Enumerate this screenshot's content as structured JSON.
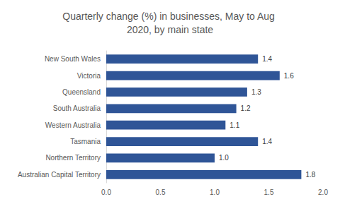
{
  "chart_data": {
    "type": "bar",
    "title": "Quarterly change (%) in businesses, May to Aug 2020, by main state",
    "orientation": "horizontal",
    "categories": [
      "New South Wales",
      "Victoria",
      "Queensland",
      "South Australia",
      "Western Australia",
      "Tasmania",
      "Northern Territory",
      "Australian Capital Territory"
    ],
    "values": [
      1.4,
      1.6,
      1.3,
      1.2,
      1.1,
      1.4,
      1.0,
      1.8
    ],
    "value_labels": [
      "1.4",
      "1.6",
      "1.3",
      "1.2",
      "1.1",
      "1.4",
      "1.0",
      "1.8"
    ],
    "color": "#2f5597",
    "xlim": [
      0,
      2
    ],
    "xticks": [
      {
        "value": 0,
        "label": "0.0"
      },
      {
        "value": 0.5,
        "label": "0.5"
      },
      {
        "value": 1,
        "label": "1.0"
      },
      {
        "value": 1.5,
        "label": "1.5"
      },
      {
        "value": 2,
        "label": "2.0"
      }
    ],
    "grid": false,
    "data_labels": true
  }
}
